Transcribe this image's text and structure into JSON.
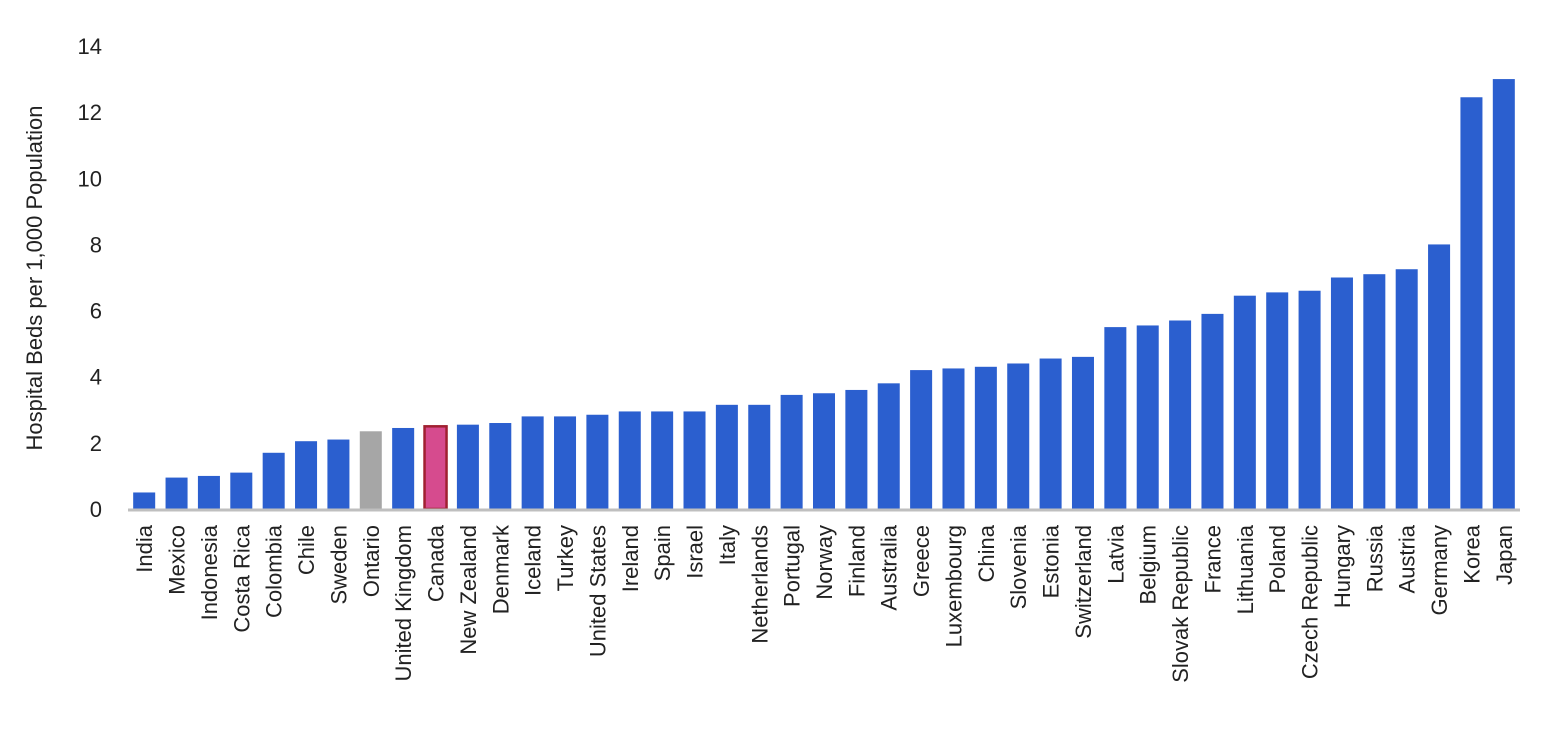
{
  "chart_data": {
    "type": "bar",
    "title": "",
    "xlabel": "",
    "ylabel": "Hospital Beds per 1,000 Population",
    "ylim": [
      0,
      14
    ],
    "yticks": [
      "0",
      "2",
      "4",
      "6",
      "8",
      "10",
      "12",
      "14"
    ],
    "grid": false,
    "legend": "none",
    "colors": {
      "default": "#2b5fcf",
      "highlight_ontario": "#a6a6a6",
      "highlight_canada_fill": "#d64b8e",
      "highlight_canada_stroke": "#a02030",
      "axis": "#bfbfbf"
    },
    "categories": [
      "India",
      "Mexico",
      "Indonesia",
      "Costa Rica",
      "Colombia",
      "Chile",
      "Sweden",
      "Ontario",
      "United Kingdom",
      "Canada",
      "New Zealand",
      "Denmark",
      "Iceland",
      "Turkey",
      "United States",
      "Ireland",
      "Spain",
      "Israel",
      "Italy",
      "Netherlands",
      "Portugal",
      "Norway",
      "Finland",
      "Australia",
      "Greece",
      "Luxembourg",
      "China",
      "Slovenia",
      "Estonia",
      "Switzerland",
      "Latvia",
      "Belgium",
      "Slovak Republic",
      "France",
      "Lithuania",
      "Poland",
      "Czech Republic",
      "Hungary",
      "Russia",
      "Austria",
      "Germany",
      "Korea",
      "Japan"
    ],
    "values": [
      0.5,
      0.95,
      1.0,
      1.1,
      1.7,
      2.05,
      2.1,
      2.35,
      2.45,
      2.5,
      2.55,
      2.6,
      2.8,
      2.8,
      2.85,
      2.95,
      2.95,
      2.95,
      3.15,
      3.15,
      3.45,
      3.5,
      3.6,
      3.8,
      4.2,
      4.25,
      4.3,
      4.4,
      4.55,
      4.6,
      5.5,
      5.55,
      5.7,
      5.9,
      6.45,
      6.55,
      6.6,
      7.0,
      7.1,
      7.25,
      8.0,
      12.45,
      13.0
    ],
    "highlights": {
      "Ontario": "gray",
      "Canada": "pink-outlined"
    }
  }
}
